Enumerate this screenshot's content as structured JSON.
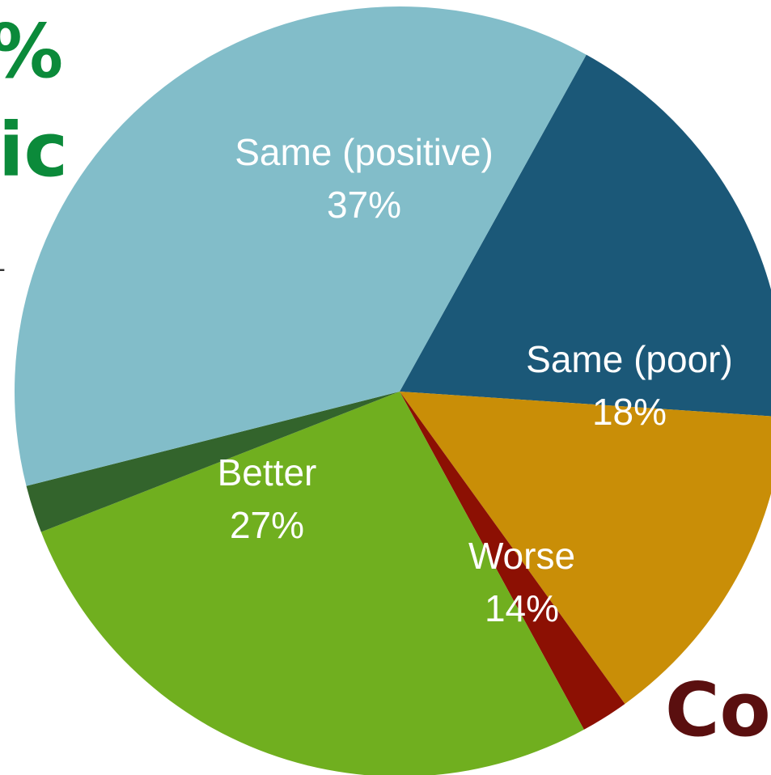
{
  "background_text": {
    "percent_fragment": "%",
    "ic_fragment": "ic",
    "co_fragment": "Co",
    "dash_fragment": "-",
    "green_color": "#0b8a3a",
    "maroon_color": "#5a0f0f"
  },
  "chart_data": {
    "type": "pie",
    "start_angle_deg": -61,
    "slices": [
      {
        "label": "Same (poor)",
        "value_label": "18%",
        "value": 18,
        "color": "#1b5878"
      },
      {
        "label": "Worse",
        "value_label": "14%",
        "value": 14,
        "color": "#c98e07"
      },
      {
        "label": "",
        "value_label": "",
        "value": 2,
        "color": "#8c1003"
      },
      {
        "label": "Better",
        "value_label": "27%",
        "value": 27,
        "color": "#70af1f"
      },
      {
        "label": "",
        "value_label": "",
        "value": 2,
        "color": "#33642c"
      },
      {
        "label": "Same (positive)",
        "value_label": "37%",
        "value": 37,
        "color": "#82bdc9"
      }
    ]
  }
}
